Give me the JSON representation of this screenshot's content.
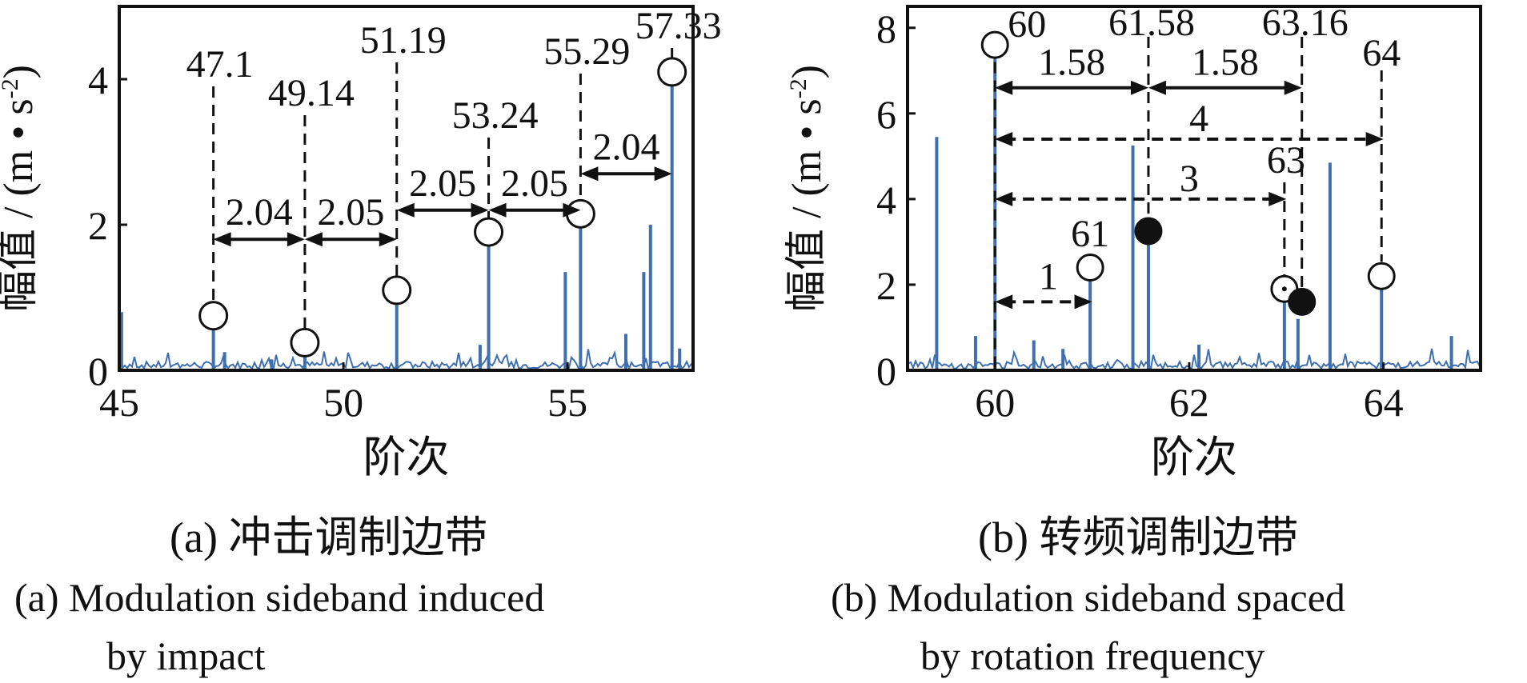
{
  "chart_data": [
    {
      "type": "line",
      "panel": "(a)",
      "ylabel": "幅值 / (m • s",
      "ylabel_sup": "-2",
      "ylabel_close": ")",
      "xlabel": "阶次",
      "xlim": [
        45,
        57.8
      ],
      "ylim": [
        0,
        5
      ],
      "xticks": [
        45,
        50,
        55
      ],
      "yticks": [
        0,
        2,
        4
      ],
      "series_color": "#3f6faf",
      "peaks": [
        {
          "x": 47.1,
          "y": 0.55
        },
        {
          "x": 49.14,
          "y": 0.2
        },
        {
          "x": 51.19,
          "y": 0.9
        },
        {
          "x": 53.24,
          "y": 1.75
        },
        {
          "x": 55.29,
          "y": 2.1
        },
        {
          "x": 57.33,
          "y": 4.05
        },
        {
          "x": 45.05,
          "y": 0.8
        },
        {
          "x": 47.35,
          "y": 0.25
        },
        {
          "x": 48.4,
          "y": 0.15
        },
        {
          "x": 53.05,
          "y": 0.35
        },
        {
          "x": 54.95,
          "y": 1.35
        },
        {
          "x": 56.7,
          "y": 1.35
        },
        {
          "x": 56.85,
          "y": 2.0
        },
        {
          "x": 56.3,
          "y": 0.5
        },
        {
          "x": 57.5,
          "y": 0.3
        }
      ],
      "marked": [
        {
          "label": "47.1",
          "x": 47.1,
          "y": 0.75
        },
        {
          "label": "49.14",
          "x": 49.14,
          "y": 0.38
        },
        {
          "label": "51.19",
          "x": 51.19,
          "y": 1.1
        },
        {
          "label": "53.24",
          "x": 53.24,
          "y": 1.9
        },
        {
          "label": "55.29",
          "x": 55.29,
          "y": 2.15
        },
        {
          "label": "57.33",
          "x": 57.33,
          "y": 4.1
        }
      ],
      "spacings": [
        {
          "label": "2.04",
          "from": 47.1,
          "to": 49.14,
          "y": 1.8
        },
        {
          "label": "2.05",
          "from": 49.14,
          "to": 51.19,
          "y": 1.8
        },
        {
          "label": "2.05",
          "from": 51.19,
          "to": 53.24,
          "y": 2.2
        },
        {
          "label": "2.05",
          "from": 53.24,
          "to": 55.29,
          "y": 2.2
        },
        {
          "label": "2.04",
          "from": 55.29,
          "to": 57.33,
          "y": 2.7
        }
      ],
      "caption_zh": "(a)  冲击调制边带",
      "caption_en": [
        "(a)  Modulation sideband induced",
        "by impact"
      ]
    },
    {
      "type": "line",
      "panel": "(b)",
      "ylabel": "幅值 / (m • s",
      "ylabel_sup": "-2",
      "ylabel_close": ")",
      "xlabel": "阶次",
      "xlim": [
        59.1,
        65
      ],
      "ylim": [
        0,
        8.5
      ],
      "xticks": [
        60,
        62,
        64
      ],
      "yticks": [
        0,
        2,
        4,
        6,
        8
      ],
      "series_color": "#3f6faf",
      "peaks": [
        {
          "x": 59.4,
          "y": 5.45
        },
        {
          "x": 60.0,
          "y": 7.4
        },
        {
          "x": 60.98,
          "y": 2.2
        },
        {
          "x": 61.42,
          "y": 5.25
        },
        {
          "x": 61.58,
          "y": 3.1
        },
        {
          "x": 62.98,
          "y": 1.6
        },
        {
          "x": 63.12,
          "y": 1.2
        },
        {
          "x": 63.45,
          "y": 4.85
        },
        {
          "x": 63.98,
          "y": 1.9
        },
        {
          "x": 59.8,
          "y": 0.8
        },
        {
          "x": 60.4,
          "y": 0.7
        },
        {
          "x": 60.7,
          "y": 0.5
        },
        {
          "x": 62.1,
          "y": 0.6
        },
        {
          "x": 64.7,
          "y": 0.8
        }
      ],
      "marked": [
        {
          "label": "60",
          "x": 60.0,
          "y": 7.6,
          "filled": false
        },
        {
          "label": "61",
          "x": 60.98,
          "y": 2.4,
          "filled": false
        },
        {
          "label": "",
          "x": 61.58,
          "y": 3.25,
          "filled": true
        },
        {
          "label": "63",
          "x": 62.98,
          "y": 1.9,
          "filled": false
        },
        {
          "label": "",
          "x": 63.16,
          "y": 1.6,
          "filled": true
        },
        {
          "label": "64",
          "x": 63.98,
          "y": 2.2,
          "filled": false
        }
      ],
      "top_labels": [
        {
          "label": "61.58",
          "x": 61.58
        },
        {
          "label": "63.16",
          "x": 63.16
        }
      ],
      "spacings": [
        {
          "label": "1.58",
          "from": 60.0,
          "to": 61.58,
          "y": 6.6,
          "style": "solid"
        },
        {
          "label": "1.58",
          "from": 61.58,
          "to": 63.16,
          "y": 6.6,
          "style": "solid"
        },
        {
          "label": "4",
          "from": 60.0,
          "to": 64.0,
          "y": 5.4,
          "style": "dashed"
        },
        {
          "label": "3",
          "from": 60.0,
          "to": 63.0,
          "y": 4.0,
          "style": "dashed"
        },
        {
          "label": "1",
          "from": 60.0,
          "to": 61.0,
          "y": 1.6,
          "style": "dashed"
        }
      ],
      "caption_zh": "(b)  转频调制边带",
      "caption_en": [
        "(b)  Modulation sideband spaced",
        "by rotation frequency"
      ]
    }
  ]
}
